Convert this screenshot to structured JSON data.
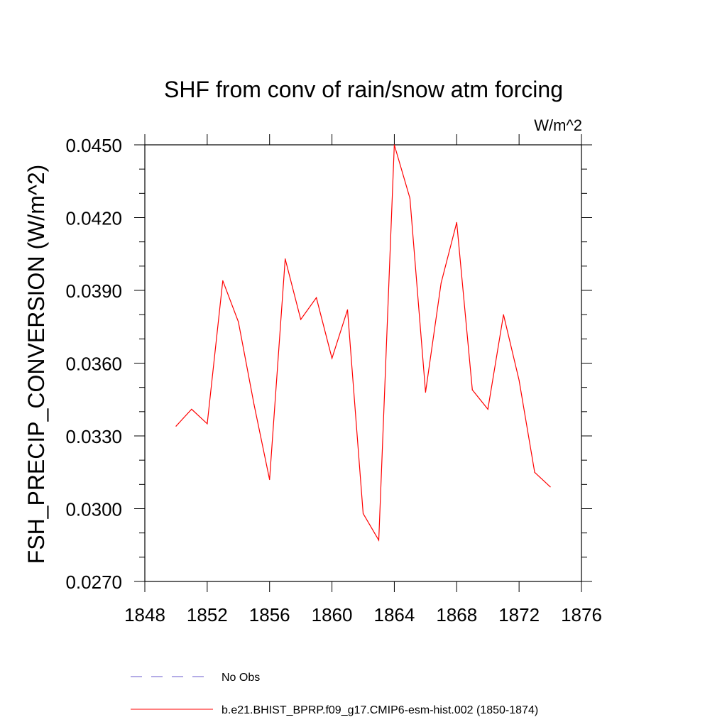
{
  "chart_data": {
    "type": "line",
    "title": "SHF from conv of rain/snow atm forcing",
    "units": "W/m^2",
    "ylabel": "FSH_PRECIP_CONVERSION  (W/m^2)",
    "xlabel": "",
    "xlim": [
      1848,
      1876
    ],
    "ylim": [
      0.027,
      0.045
    ],
    "x_ticks": [
      1848,
      1852,
      1856,
      1860,
      1864,
      1868,
      1872,
      1876
    ],
    "x_tick_labels": [
      "1848",
      "1852",
      "1856",
      "1860",
      "1864",
      "1868",
      "1872",
      "1876"
    ],
    "y_ticks": [
      0.027,
      0.03,
      0.033,
      0.036,
      0.039,
      0.042,
      0.045
    ],
    "y_tick_labels": [
      "0.0270",
      "0.0300",
      "0.0330",
      "0.0360",
      "0.0390",
      "0.0420",
      "0.0450"
    ],
    "grid": false,
    "legend_position": "bottom",
    "series": [
      {
        "name": "b.e21.BHIST_BPRP.f09_g17.CMIP6-esm-hist.002 (1850-1874)",
        "color": "#ff0000",
        "style": "solid",
        "x": [
          1850,
          1851,
          1852,
          1853,
          1854,
          1855,
          1856,
          1857,
          1858,
          1859,
          1860,
          1861,
          1862,
          1863,
          1864,
          1865,
          1866,
          1867,
          1868,
          1869,
          1870,
          1871,
          1872,
          1873,
          1874
        ],
        "values": [
          0.0334,
          0.0341,
          0.0335,
          0.0394,
          0.0377,
          0.0343,
          0.0312,
          0.0403,
          0.0378,
          0.0387,
          0.0362,
          0.0382,
          0.0298,
          0.0287,
          0.045,
          0.0428,
          0.0348,
          0.0393,
          0.0418,
          0.0349,
          0.0341,
          0.038,
          0.0353,
          0.0315,
          0.0309
        ]
      }
    ],
    "legend": [
      {
        "label": "No Obs",
        "color": "#6a5acd",
        "style": "dashed"
      },
      {
        "label": "b.e21.BHIST_BPRP.f09_g17.CMIP6-esm-hist.002 (1850-1874)",
        "color": "#ff0000",
        "style": "solid"
      }
    ]
  }
}
